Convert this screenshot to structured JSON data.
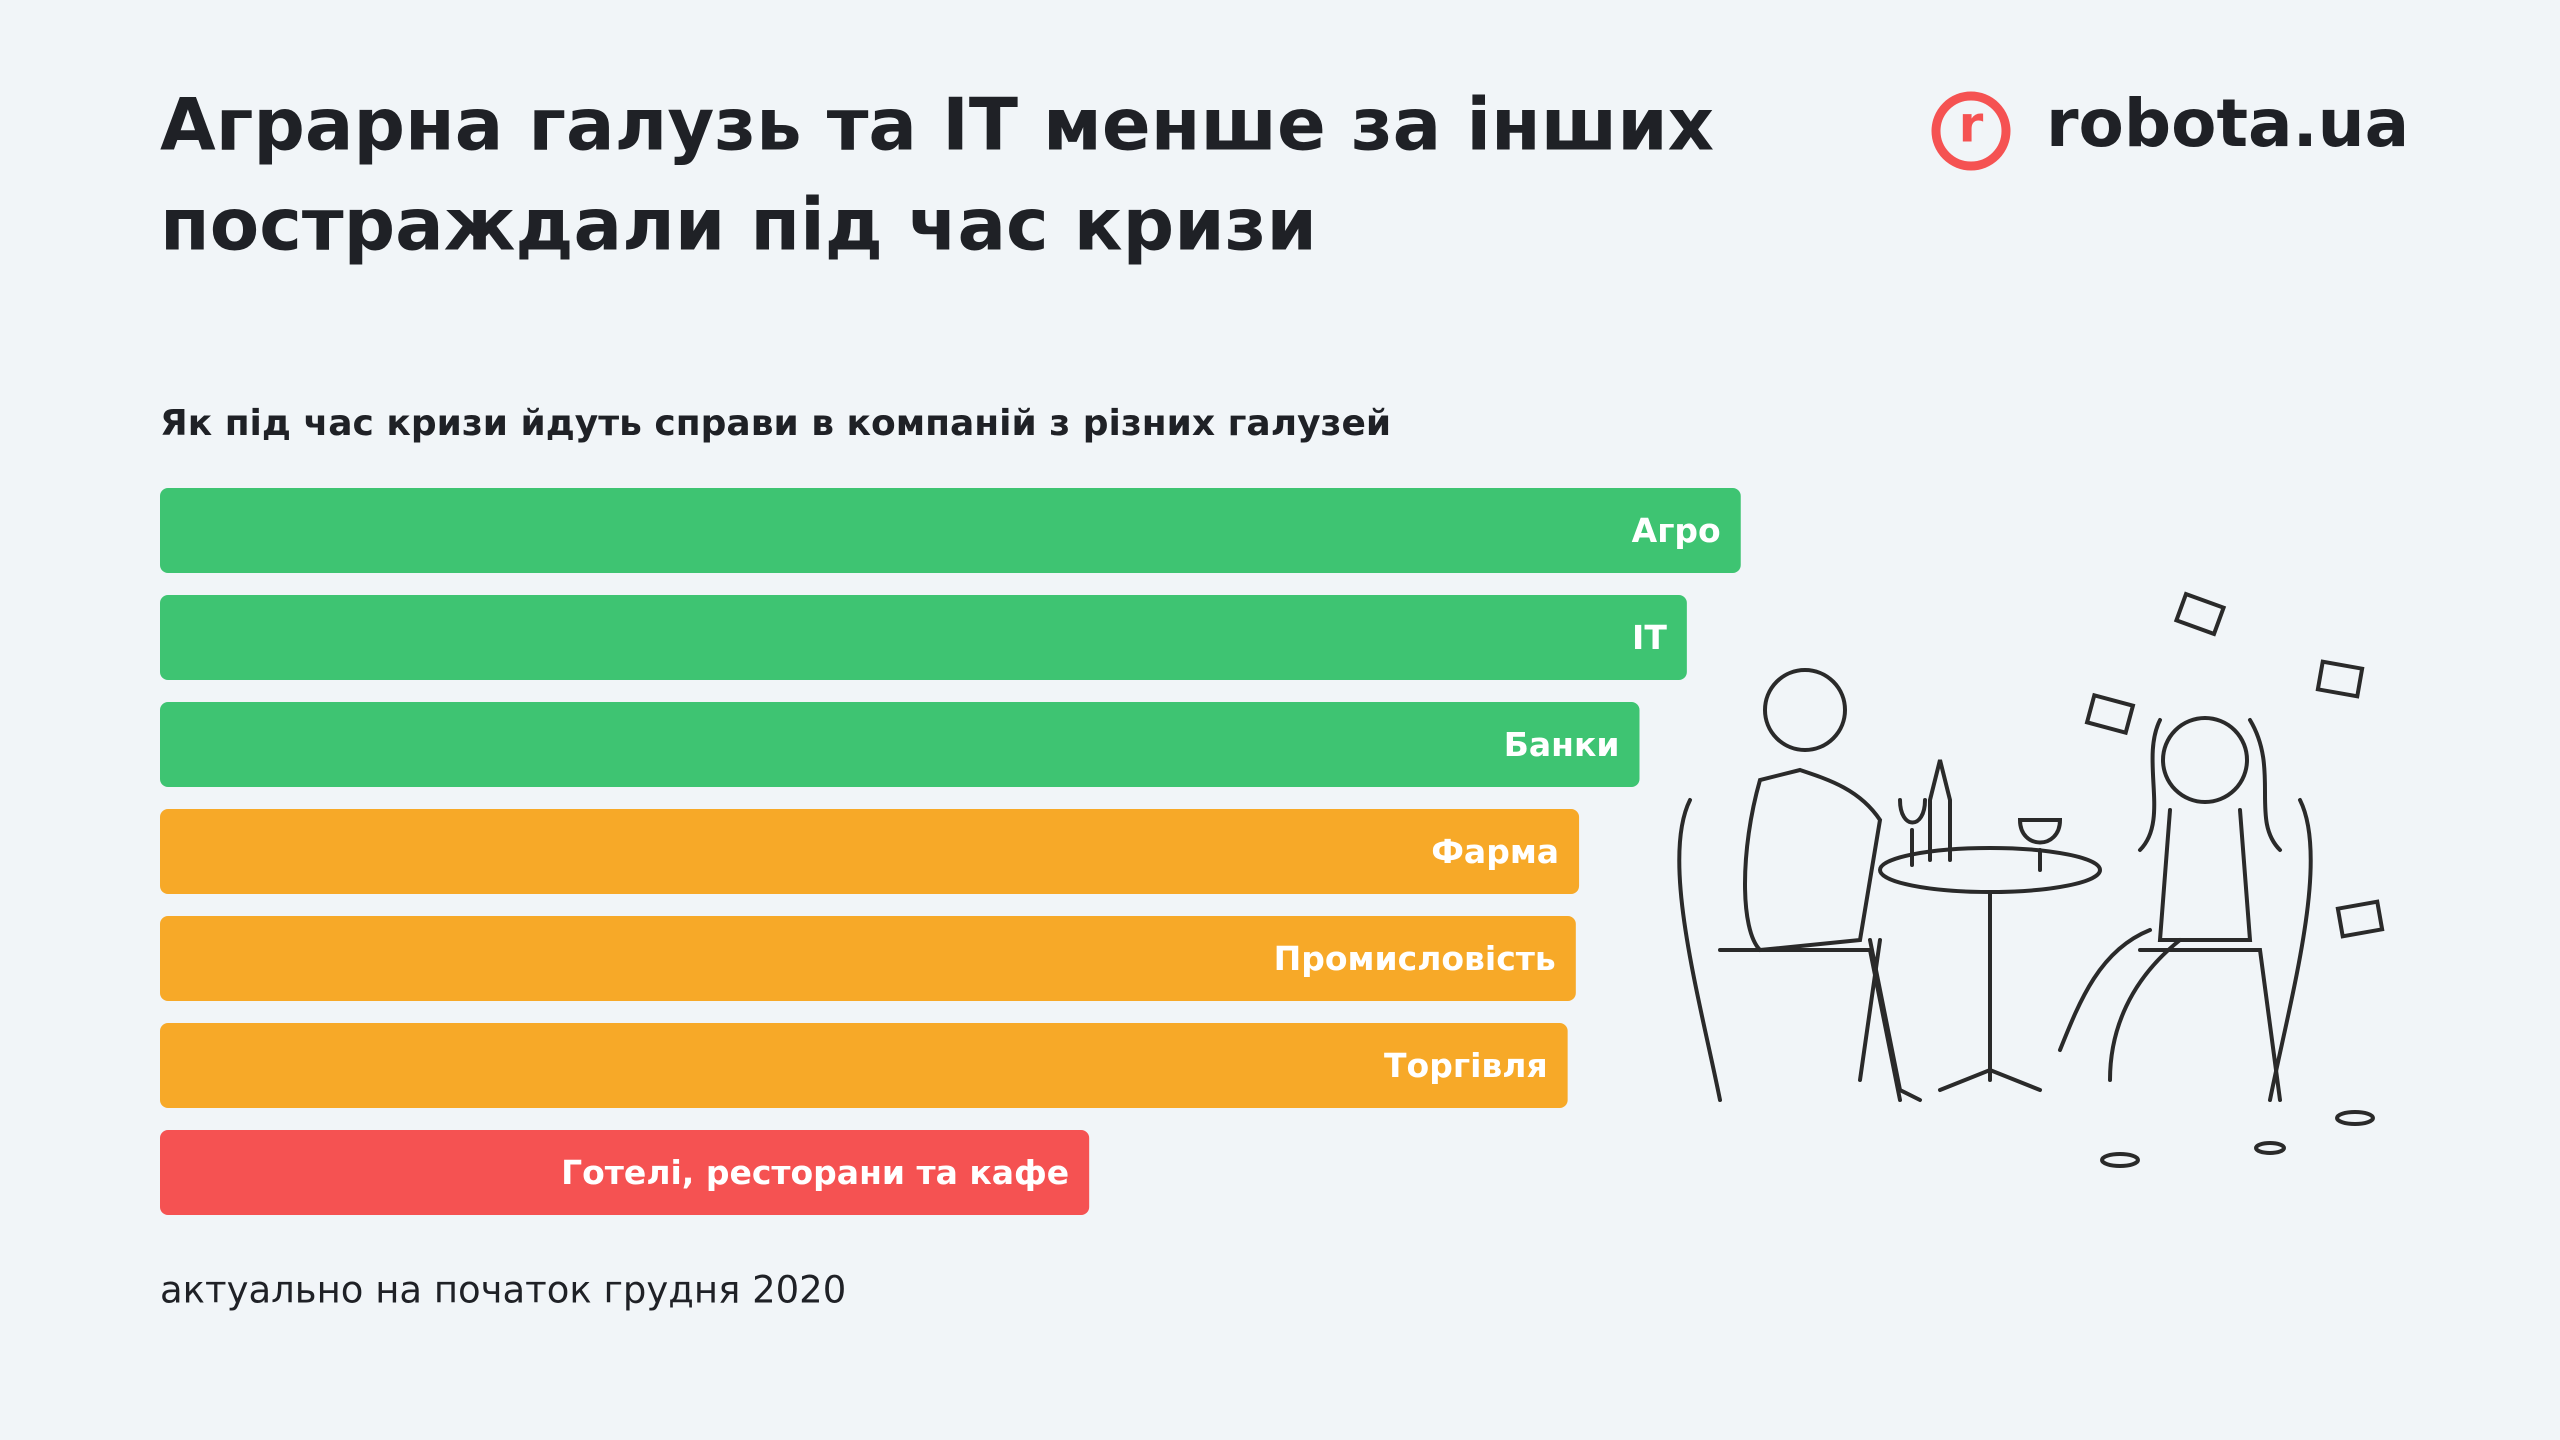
{
  "chart_data": {
    "type": "bar",
    "orientation": "horizontal",
    "title": [
      "Аграрна галузь та ІТ менше за інших",
      "постраждали під час кризи"
    ],
    "subtitle": "Як під час кризи йдуть справи в компаній з різних галузей",
    "categories": [
      "Агро",
      "ІТ",
      "Банки",
      "Фарма",
      "Промисловість",
      "Торгівля",
      "Готелі, ресторани та кафе"
    ],
    "values": [
      96.8,
      93.5,
      90.6,
      86.9,
      86.7,
      86.2,
      56.9
    ],
    "colors": [
      "#3ec472",
      "#3ec472",
      "#3ec472",
      "#f7a928",
      "#f7a928",
      "#f7a928",
      "#f55252"
    ],
    "xlim": [
      0,
      100
    ],
    "note": "актуально на початок грудня 2020",
    "logo": {
      "mark": "r",
      "text": "robota.ua",
      "color": "#f55252"
    }
  }
}
